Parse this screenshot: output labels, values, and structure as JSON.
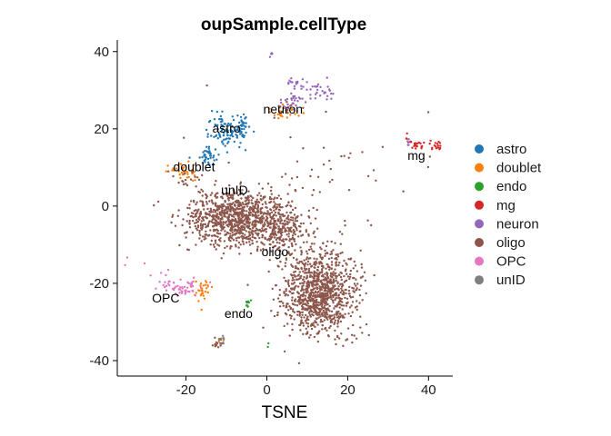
{
  "chart_data": {
    "type": "scatter",
    "title": "oupSample.cellType",
    "xlabel": "TSNE",
    "ylabel": "",
    "xlim": [
      -37,
      46
    ],
    "ylim": [
      -44,
      43
    ],
    "xticks": [
      -20,
      0,
      20,
      40
    ],
    "yticks": [
      -40,
      -20,
      0,
      20,
      40
    ],
    "grid": false,
    "legend_position": "right",
    "series": [
      {
        "name": "astro",
        "color": "#1F77B4",
        "clusters": [
          {
            "cx": -9,
            "cy": 19,
            "sx": 2.5,
            "sy": 1.8,
            "n": 90
          },
          {
            "cx": -15,
            "cy": 13,
            "sx": 1.5,
            "sy": 1.2,
            "n": 40
          },
          {
            "cx": -6,
            "cy": 21,
            "sx": 1.0,
            "sy": 1.5,
            "n": 25
          },
          {
            "cx": -12,
            "cy": 22,
            "sx": 2.0,
            "sy": 1.5,
            "n": 10
          }
        ]
      },
      {
        "name": "doublet",
        "color": "#FF7F0E",
        "clusters": [
          {
            "cx": -20,
            "cy": 9,
            "sx": 2.0,
            "sy": 1.2,
            "n": 35
          },
          {
            "cx": -16,
            "cy": -22,
            "sx": 1.0,
            "sy": 1.5,
            "n": 30
          },
          {
            "cx": 5,
            "cy": 24,
            "sx": 1.8,
            "sy": 1.0,
            "n": 25
          },
          {
            "cx": -12,
            "cy": -35,
            "sx": 0.8,
            "sy": 0.8,
            "n": 6
          }
        ]
      },
      {
        "name": "endo",
        "color": "#2CA02C",
        "clusters": [
          {
            "cx": -5,
            "cy": -25,
            "sx": 0.6,
            "sy": 0.8,
            "n": 8
          },
          {
            "cx": 1,
            "cy": -36,
            "sx": 0.3,
            "sy": 0.4,
            "n": 2
          }
        ]
      },
      {
        "name": "mg",
        "color": "#D62728",
        "clusters": [
          {
            "cx": 37,
            "cy": 16,
            "sx": 1.5,
            "sy": 0.8,
            "n": 25
          },
          {
            "cx": 42,
            "cy": 15.5,
            "sx": 0.7,
            "sy": 0.7,
            "n": 15
          }
        ]
      },
      {
        "name": "neuron",
        "color": "#9467BD",
        "clusters": [
          {
            "cx": 13,
            "cy": 30,
            "sx": 1.8,
            "sy": 1.3,
            "n": 30
          },
          {
            "cx": 6,
            "cy": 27,
            "sx": 1.5,
            "sy": 1.5,
            "n": 25
          },
          {
            "cx": 6,
            "cy": 32,
            "sx": 1.5,
            "sy": 0.8,
            "n": 15
          },
          {
            "cx": 1,
            "cy": 39,
            "sx": 0.3,
            "sy": 0.5,
            "n": 4
          },
          {
            "cx": 35,
            "cy": 16.5,
            "sx": 0.5,
            "sy": 0.5,
            "n": 5
          }
        ]
      },
      {
        "name": "oligo",
        "color": "#8C564B",
        "clusters": [
          {
            "cx": -8,
            "cy": -3,
            "sx": 6.0,
            "sy": 3.5,
            "n": 900
          },
          {
            "cx": 3,
            "cy": -6,
            "sx": 3.0,
            "sy": 3.0,
            "n": 250
          },
          {
            "cx": 13,
            "cy": -22,
            "sx": 4.5,
            "sy": 5.5,
            "n": 1000
          },
          {
            "cx": -20,
            "cy": 7,
            "sx": 1.5,
            "sy": 1.0,
            "n": 15
          },
          {
            "cx": -12,
            "cy": -36,
            "sx": 0.7,
            "sy": 0.8,
            "n": 12
          },
          {
            "cx": 5,
            "cy": 25,
            "sx": 1.5,
            "sy": 1.0,
            "n": 10
          },
          {
            "cx": 10,
            "cy": 3,
            "sx": 12.0,
            "sy": 10.0,
            "n": 60
          }
        ]
      },
      {
        "name": "OPC",
        "color": "#E377C2",
        "clusters": [
          {
            "cx": -21,
            "cy": -21,
            "sx": 2.5,
            "sy": 1.0,
            "n": 50
          },
          {
            "cx": -27,
            "cy": -19,
            "sx": 2.5,
            "sy": 1.8,
            "n": 8
          },
          {
            "cx": -31,
            "cy": -15,
            "sx": 2.0,
            "sy": 1.5,
            "n": 3
          }
        ]
      },
      {
        "name": "unID",
        "color": "#7F7F7F",
        "clusters": [
          {
            "cx": -11,
            "cy": -35,
            "sx": 0.6,
            "sy": 0.8,
            "n": 10
          },
          {
            "cx": -6,
            "cy": 4,
            "sx": 1.0,
            "sy": 0.6,
            "n": 4
          }
        ]
      }
    ],
    "cluster_labels": [
      {
        "text": "astro",
        "x": -10,
        "y": 19
      },
      {
        "text": "neuron",
        "x": 4,
        "y": 24
      },
      {
        "text": "mg",
        "x": 37,
        "y": 12
      },
      {
        "text": "doublet",
        "x": -18,
        "y": 9
      },
      {
        "text": "unID",
        "x": -8,
        "y": 3
      },
      {
        "text": "oligo",
        "x": 2,
        "y": -13
      },
      {
        "text": "OPC",
        "x": -25,
        "y": -25
      },
      {
        "text": "endo",
        "x": -7,
        "y": -29
      }
    ]
  }
}
